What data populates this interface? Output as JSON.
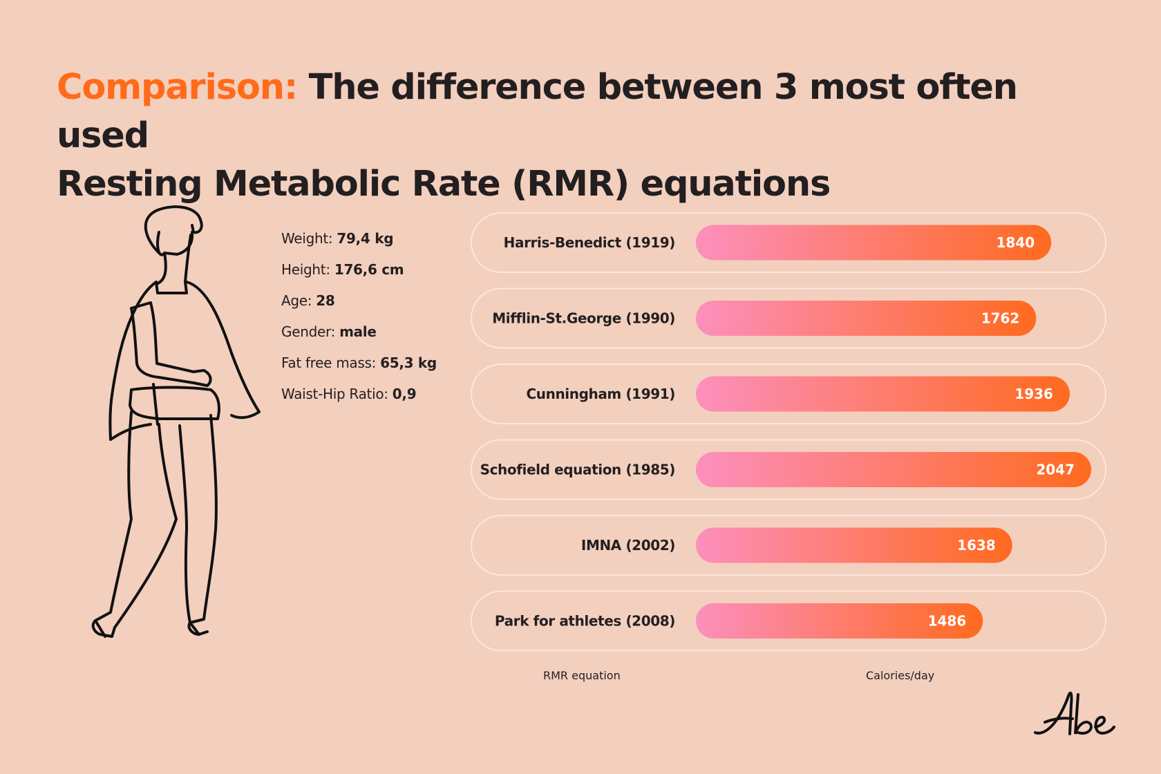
{
  "title": {
    "accent": "Comparison:",
    "line1": "The difference between 3 most often used",
    "line2": "Resting Metabolic Rate (RMR) equations"
  },
  "stats": [
    {
      "label": "Weight:",
      "value": "79,4 kg"
    },
    {
      "label": "Height:",
      "value": "176,6 cm"
    },
    {
      "label": "Age:",
      "value": "28"
    },
    {
      "label": "Gender:",
      "value": "male"
    },
    {
      "label": "Fat free mass:",
      "value": "65,3 kg"
    },
    {
      "label": "Waist-Hip Ratio:",
      "value": "0,9"
    }
  ],
  "chart_data": {
    "type": "bar",
    "orientation": "horizontal",
    "categories": [
      "Harris-Benedict (1919)",
      "Mifflin-St.George (1990)",
      "Cunningham (1991)",
      "Schofield equation (1985)",
      "IMNA (2002)",
      "Park for athletes (2008)"
    ],
    "values": [
      1840,
      1762,
      1936,
      2047,
      1638,
      1486
    ],
    "xlabel": "Calories/day",
    "ylabel": "RMR equation",
    "colors": {
      "gradient_start": "#fc8fbd",
      "gradient_end": "#ff6a1f",
      "pill_border": "#fbe7de"
    }
  },
  "logo": {
    "text": "Abe"
  }
}
